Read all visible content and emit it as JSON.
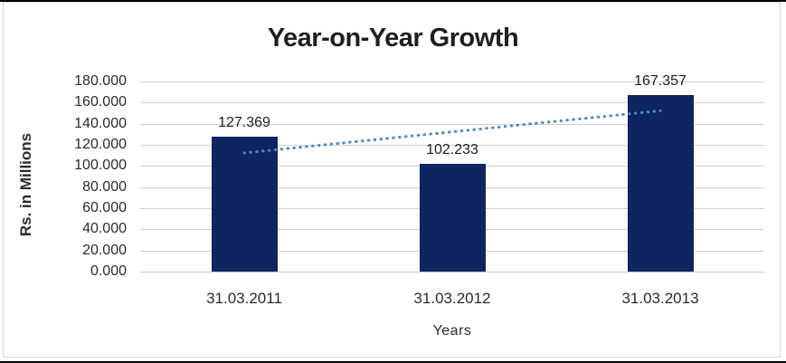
{
  "window": {
    "background": "#ffffff",
    "outer_border_color": "#000000",
    "frame_border_color": "#d7d7d7"
  },
  "chart_data": {
    "type": "bar",
    "title": "Year-on-Year Growth",
    "xlabel": "Years",
    "ylabel": "Rs. in Millions",
    "categories": [
      "31.03.2011",
      "31.03.2012",
      "31.03.2013"
    ],
    "values": [
      127.369,
      102.233,
      167.357
    ],
    "value_labels": [
      "127.369",
      "102.233",
      "167.357"
    ],
    "ylim": [
      0,
      180
    ],
    "ytick_step": 20,
    "ytick_labels": [
      "0.000",
      "20.000",
      "40.000",
      "60.000",
      "80.000",
      "100.000",
      "120.000",
      "140.000",
      "160.000",
      "180.000"
    ],
    "grid": true,
    "legend": false,
    "trendline": {
      "kind": "linear",
      "style": "dotted",
      "color": "#4e86c5"
    },
    "colors": {
      "bar": "#0d2560",
      "grid": "#cfcfcf",
      "baseline": "#c4c4c4",
      "title_text": "#1f1f1f",
      "axis_text": "#2b2b2b",
      "label_text": "#1d1d1d"
    }
  }
}
